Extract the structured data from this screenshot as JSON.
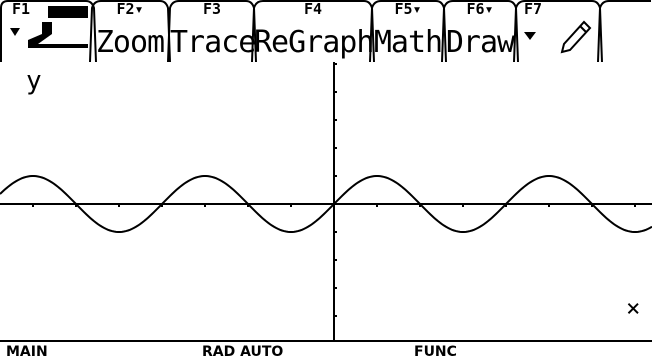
{
  "toolbar": {
    "items": [
      {
        "key": "F1",
        "label": ""
      },
      {
        "key": "F2▾",
        "label": "Zoom"
      },
      {
        "key": "F3",
        "label": "Trace"
      },
      {
        "key": "F4",
        "label": "ReGraph"
      },
      {
        "key": "F5▾",
        "label": "Math"
      },
      {
        "key": "F6▾",
        "label": "Draw"
      },
      {
        "key": "F7",
        "label": ""
      }
    ]
  },
  "graph": {
    "y_axis_label": "y",
    "cursor_glyph": "×"
  },
  "status": {
    "folder": "MAIN",
    "mode": "RAD AUTO",
    "graph_mode": "FUNC"
  }
}
